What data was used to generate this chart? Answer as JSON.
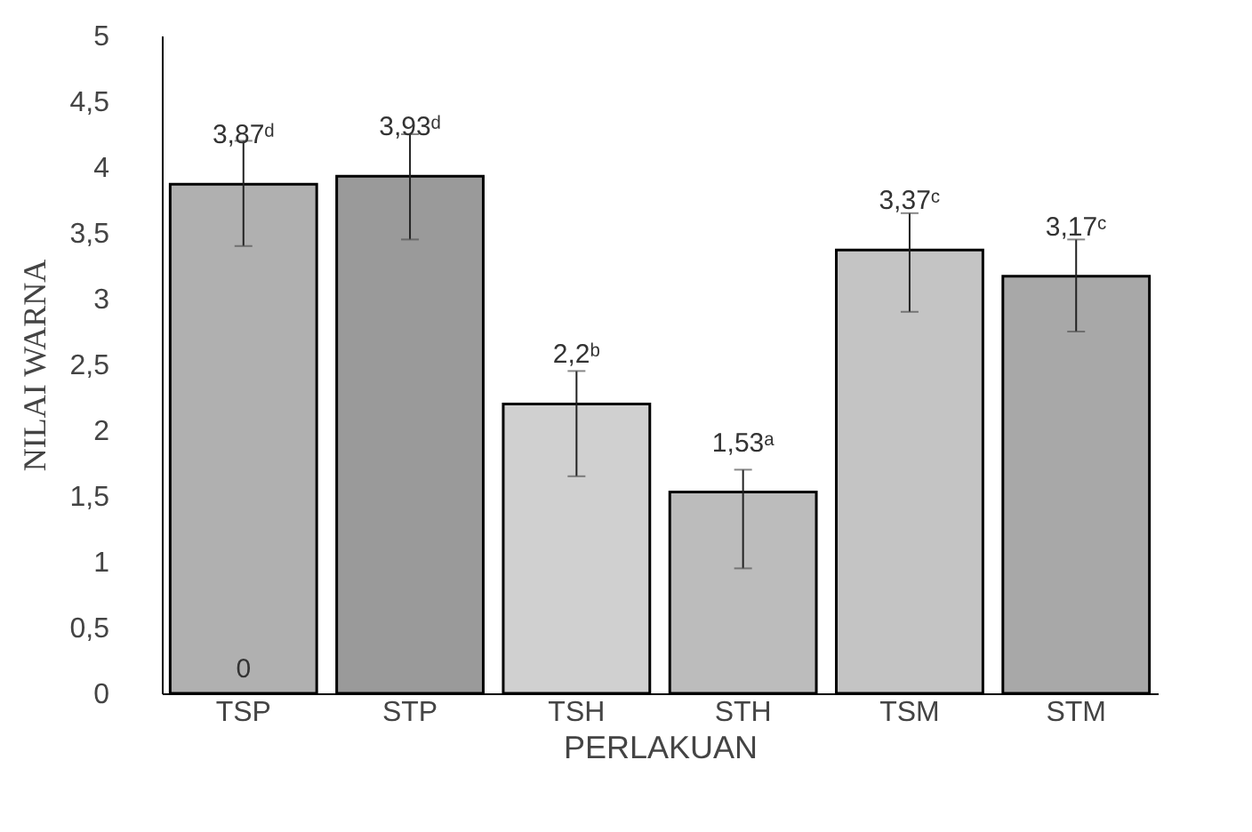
{
  "chart_data": {
    "type": "bar",
    "xlabel": "PERLAKUAN",
    "ylabel": "NILAI WARNA",
    "categories": [
      "TSP",
      "STP",
      "TSH",
      "STH",
      "TSM",
      "STM"
    ],
    "values": [
      3.87,
      3.93,
      2.2,
      1.53,
      3.37,
      3.17
    ],
    "colors": [
      "#b0b0b0",
      "#9a9a9a",
      "#d0d0d0",
      "#bcbcbc",
      "#c4c4c4",
      "#a8a8a8"
    ],
    "errors": [
      [
        3.4,
        4.2
      ],
      [
        3.45,
        4.25
      ],
      [
        1.65,
        2.45
      ],
      [
        0.95,
        1.7
      ],
      [
        2.9,
        3.65
      ],
      [
        2.75,
        3.45
      ]
    ],
    "value_labels": [
      "3,87ᵈ",
      "3,93ᵈ",
      "2,2ᵇ",
      "1,53ᵃ",
      "3,37ᶜ",
      "3,17ᶜ"
    ],
    "annotations": [
      {
        "text": "0",
        "x": "TSP",
        "y": 0
      }
    ],
    "ylim": [
      0,
      5
    ],
    "yticks": [
      {
        "value": 0,
        "label": "0"
      },
      {
        "value": 0.5,
        "label": "0,5"
      },
      {
        "value": 1,
        "label": "1"
      },
      {
        "value": 1.5,
        "label": "1,5"
      },
      {
        "value": 2,
        "label": "2"
      },
      {
        "value": 2.5,
        "label": "2,5"
      },
      {
        "value": 3,
        "label": "3"
      },
      {
        "value": 3.5,
        "label": "3,5"
      },
      {
        "value": 4,
        "label": "4"
      },
      {
        "value": 4.5,
        "label": "4,5"
      },
      {
        "value": 5,
        "label": "5"
      }
    ],
    "grid": false
  }
}
